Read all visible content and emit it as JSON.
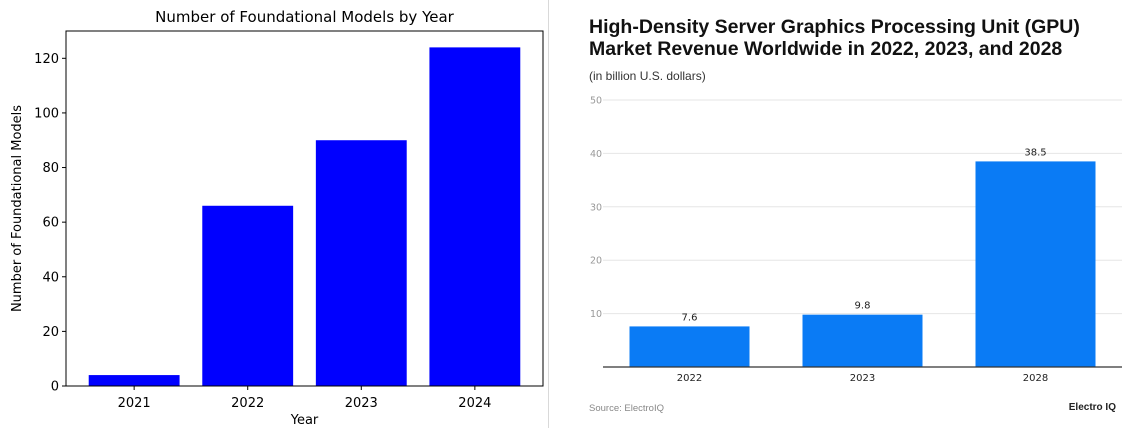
{
  "charts": [
    {
      "id": "left",
      "chart_data": {
        "type": "bar",
        "title": "Number of Foundational Models by Year",
        "xlabel": "Year",
        "ylabel": "Number of Foundational Models",
        "categories": [
          "2021",
          "2022",
          "2023",
          "2024"
        ],
        "values": [
          4,
          66,
          90,
          124
        ],
        "ylim": [
          0,
          130
        ],
        "yticks": [
          0,
          20,
          40,
          60,
          80,
          100,
          120
        ],
        "grid": false,
        "color": "#0000ff"
      }
    },
    {
      "id": "right",
      "chart_data": {
        "type": "bar",
        "title": "High-Density Server Graphics Processing Unit (GPU) Market Revenue Worldwide in 2022, 2023, and 2028",
        "subtitle": "(in billion U.S. dollars)",
        "categories": [
          "2022",
          "2023",
          "2028"
        ],
        "values": [
          7.6,
          9.8,
          38.5
        ],
        "data_labels": [
          "7.6",
          "9.8",
          "38.5"
        ],
        "ylim": [
          0,
          50
        ],
        "yticks": [
          10,
          20,
          30,
          40,
          50
        ],
        "grid": true,
        "color": "#0a7bf5",
        "source": "Source: ElectroIQ",
        "brand": "Electro IQ"
      }
    }
  ]
}
